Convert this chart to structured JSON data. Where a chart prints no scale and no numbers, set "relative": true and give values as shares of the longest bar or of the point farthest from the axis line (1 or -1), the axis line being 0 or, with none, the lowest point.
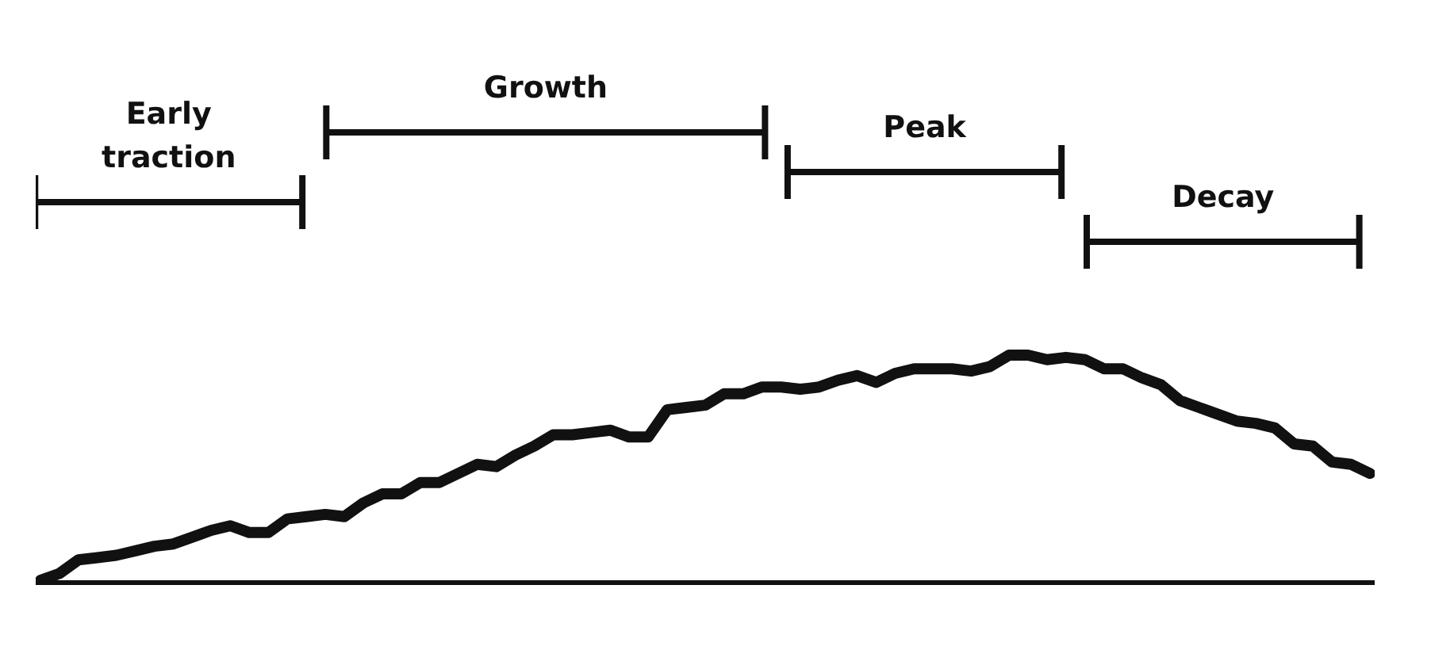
{
  "chart_data": {
    "type": "line",
    "relative": true,
    "categories": [
      null,
      null,
      null,
      null,
      null,
      null,
      null,
      null,
      null,
      null,
      null,
      null,
      null,
      null,
      null,
      null,
      null,
      null,
      null,
      null,
      null,
      null,
      null,
      null,
      null,
      null,
      null,
      null,
      null,
      null,
      null,
      null,
      null,
      null,
      null,
      null,
      null,
      null,
      null,
      null,
      null,
      null,
      null,
      null,
      null,
      null,
      null,
      null,
      null,
      null,
      null,
      null,
      null,
      null,
      null,
      null,
      null,
      null,
      null,
      null,
      null,
      null,
      null,
      null,
      null,
      null,
      null,
      null,
      null,
      null,
      null
    ],
    "color": "#111111",
    "values": [
      0.01,
      0.04,
      0.1,
      0.11,
      0.12,
      0.14,
      0.16,
      0.17,
      0.2,
      0.23,
      0.25,
      0.22,
      0.22,
      0.28,
      0.29,
      0.3,
      0.29,
      0.35,
      0.39,
      0.39,
      0.44,
      0.44,
      0.48,
      0.52,
      0.51,
      0.56,
      0.6,
      0.65,
      0.65,
      0.66,
      0.67,
      0.64,
      0.64,
      0.76,
      0.77,
      0.78,
      0.83,
      0.83,
      0.86,
      0.86,
      0.85,
      0.86,
      0.89,
      0.91,
      0.88,
      0.92,
      0.94,
      0.94,
      0.94,
      0.93,
      0.95,
      1.0,
      1.0,
      0.98,
      0.99,
      0.98,
      0.94,
      0.94,
      0.9,
      0.87,
      0.8,
      0.77,
      0.74,
      0.71,
      0.7,
      0.68,
      0.61,
      0.6,
      0.53,
      0.52,
      0.48
    ],
    "annotations": [
      "Early traction",
      "Growth",
      "Peak",
      "Decay"
    ]
  }
}
